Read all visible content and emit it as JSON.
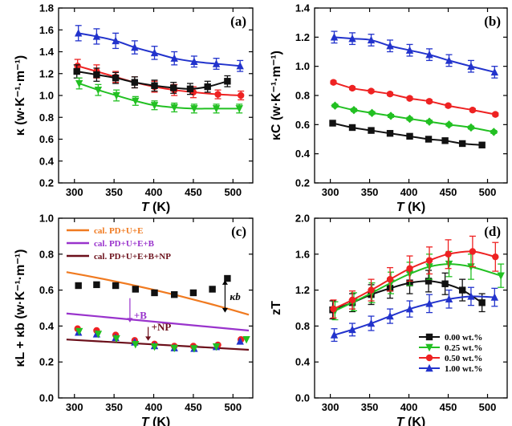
{
  "figure": "four-panel thermal conductivity and zT figure",
  "colors": {
    "black": "#111111",
    "green": "#22c022",
    "red": "#ee2222",
    "blue": "#2233cc",
    "orange": "#f07a20",
    "purple": "#9933cc",
    "maroon": "#6b0f1a"
  },
  "chart_data": [
    {
      "panel": "(a)",
      "type": "line",
      "xlabel": "T (K)",
      "ylabel": "κ (w·K⁻¹·m⁻¹)",
      "xlim": [
        280,
        525
      ],
      "ylim": [
        0.2,
        1.8
      ],
      "xticks": [
        300,
        350,
        400,
        450,
        500
      ],
      "yticks": [
        0.2,
        0.4,
        0.6,
        0.8,
        1.0,
        1.2,
        1.4,
        1.6,
        1.8
      ],
      "series": [
        {
          "name": "1.00 wt.%",
          "color": "blue",
          "marker": "triangle",
          "x": [
            305,
            328,
            352,
            376,
            401,
            426,
            451,
            479,
            509
          ],
          "y": [
            1.57,
            1.54,
            1.5,
            1.44,
            1.39,
            1.34,
            1.31,
            1.29,
            1.27
          ],
          "err": [
            0.07,
            0.07,
            0.07,
            0.06,
            0.06,
            0.06,
            0.05,
            0.05,
            0.05
          ]
        },
        {
          "name": "0.50 wt.%",
          "color": "red",
          "marker": "circle",
          "x": [
            304,
            328,
            352,
            376,
            401,
            426,
            450,
            481,
            510
          ],
          "y": [
            1.27,
            1.22,
            1.17,
            1.12,
            1.08,
            1.05,
            1.03,
            1.01,
            1.0
          ],
          "err": [
            0.06,
            0.06,
            0.05,
            0.05,
            0.05,
            0.05,
            0.05,
            0.04,
            0.04
          ]
        },
        {
          "name": "0.00 wt.%",
          "color": "black",
          "marker": "square",
          "x": [
            303,
            328,
            352,
            376,
            401,
            425,
            446,
            468,
            493
          ],
          "y": [
            1.22,
            1.19,
            1.16,
            1.12,
            1.09,
            1.07,
            1.06,
            1.08,
            1.13
          ],
          "err": [
            0.06,
            0.06,
            0.05,
            0.05,
            0.05,
            0.05,
            0.05,
            0.05,
            0.05
          ]
        },
        {
          "name": "0.25 wt.%",
          "color": "green",
          "marker": "triangle-down",
          "x": [
            306,
            330,
            353,
            377,
            401,
            426,
            451,
            479,
            508
          ],
          "y": [
            1.11,
            1.05,
            1.0,
            0.95,
            0.91,
            0.89,
            0.88,
            0.88,
            0.88
          ],
          "err": [
            0.05,
            0.05,
            0.05,
            0.04,
            0.04,
            0.04,
            0.04,
            0.04,
            0.04
          ]
        }
      ]
    },
    {
      "panel": "(b)",
      "type": "line",
      "xlabel": "T (K)",
      "ylabel": "κC (w·K⁻¹·m⁻¹)",
      "xlim": [
        280,
        525
      ],
      "ylim": [
        0.2,
        1.4
      ],
      "xticks": [
        300,
        350,
        400,
        450,
        500
      ],
      "yticks": [
        0.2,
        0.4,
        0.6,
        0.8,
        1.0,
        1.2,
        1.4
      ],
      "series": [
        {
          "name": "1.00 wt.%",
          "color": "blue",
          "marker": "triangle",
          "x": [
            305,
            328,
            352,
            376,
            401,
            426,
            451,
            479,
            509
          ],
          "y": [
            1.2,
            1.19,
            1.18,
            1.14,
            1.11,
            1.08,
            1.04,
            1.0,
            0.96
          ],
          "err": [
            0.04,
            0.04,
            0.04,
            0.04,
            0.04,
            0.04,
            0.04,
            0.04,
            0.04
          ]
        },
        {
          "name": "0.50 wt.%",
          "color": "red",
          "marker": "circle",
          "x": [
            304,
            328,
            352,
            376,
            401,
            426,
            450,
            481,
            510
          ],
          "y": [
            0.89,
            0.85,
            0.83,
            0.81,
            0.78,
            0.76,
            0.73,
            0.7,
            0.67
          ],
          "err": [
            0.01,
            0.01,
            0.01,
            0.01,
            0.01,
            0.01,
            0.01,
            0.01,
            0.01
          ]
        },
        {
          "name": "0.25 wt.%",
          "color": "green",
          "marker": "diamond",
          "x": [
            306,
            330,
            353,
            377,
            401,
            426,
            451,
            479,
            508
          ],
          "y": [
            0.73,
            0.7,
            0.68,
            0.66,
            0.64,
            0.62,
            0.6,
            0.58,
            0.55
          ],
          "err": [
            0.01,
            0.01,
            0.01,
            0.01,
            0.01,
            0.01,
            0.01,
            0.01,
            0.01
          ]
        },
        {
          "name": "0.00 wt.%",
          "color": "black",
          "marker": "square",
          "x": [
            303,
            328,
            352,
            376,
            401,
            425,
            446,
            468,
            493
          ],
          "y": [
            0.61,
            0.58,
            0.56,
            0.54,
            0.52,
            0.5,
            0.49,
            0.47,
            0.46
          ],
          "err": [
            0.005,
            0.005,
            0.005,
            0.005,
            0.005,
            0.005,
            0.005,
            0.005,
            0.005
          ]
        }
      ]
    },
    {
      "panel": "(c)",
      "type": "line",
      "xlabel": "T (K)",
      "ylabel": "κL + κb (w·K⁻¹·m⁻¹)",
      "xlim": [
        280,
        525
      ],
      "ylim": [
        0.0,
        1.0
      ],
      "xticks": [
        300,
        350,
        400,
        450,
        500
      ],
      "yticks": [
        0.0,
        0.2,
        0.4,
        0.6,
        0.8,
        1.0
      ],
      "legend": [
        "cal. PD+U+E",
        "cal. PD+U+E+B",
        "cal. PD+U+E+B+NP"
      ],
      "annotations": [
        "+B",
        "+NP",
        "κb"
      ],
      "lines": [
        {
          "name": "cal. PD+U+E",
          "color": "orange",
          "x": [
            290,
            520
          ],
          "y": [
            0.7,
            0.463
          ],
          "curve": 0.03
        },
        {
          "name": "cal. PD+U+E+B",
          "color": "purple",
          "x": [
            290,
            520
          ],
          "y": [
            0.47,
            0.375
          ],
          "curve": 0.0
        },
        {
          "name": "cal. PD+U+E+B+NP",
          "color": "maroon",
          "x": [
            290,
            520
          ],
          "y": [
            0.325,
            0.268
          ],
          "curve": 0.0
        }
      ],
      "series": [
        {
          "name": "0.00 wt.%",
          "color": "black",
          "marker": "square",
          "x": [
            305,
            328,
            352,
            377,
            401,
            426,
            450,
            474,
            493
          ],
          "y": [
            0.625,
            0.63,
            0.625,
            0.605,
            0.585,
            0.575,
            0.585,
            0.605,
            0.665
          ]
        },
        {
          "name": "0.50 wt.%",
          "color": "red",
          "marker": "circle",
          "x": [
            304,
            328,
            352,
            376,
            401,
            426,
            450,
            481,
            510
          ],
          "y": [
            0.385,
            0.375,
            0.35,
            0.32,
            0.3,
            0.288,
            0.288,
            0.295,
            0.325
          ]
        },
        {
          "name": "1.00 wt.%",
          "color": "blue",
          "marker": "triangle",
          "x": [
            305,
            328,
            352,
            376,
            401,
            426,
            451,
            479,
            509
          ],
          "y": [
            0.365,
            0.355,
            0.335,
            0.31,
            0.29,
            0.278,
            0.275,
            0.285,
            0.315
          ]
        },
        {
          "name": "0.25 wt.%",
          "color": "green",
          "marker": "triangle-down",
          "x": [
            306,
            330,
            353,
            377,
            401,
            426,
            451,
            479,
            517
          ],
          "y": [
            0.37,
            0.355,
            0.33,
            0.298,
            0.285,
            0.277,
            0.275,
            0.285,
            0.325
          ]
        }
      ]
    },
    {
      "panel": "(d)",
      "type": "line",
      "xlabel": "T (K)",
      "ylabel": "zT",
      "xlim": [
        280,
        525
      ],
      "ylim": [
        0.0,
        2.0
      ],
      "xticks": [
        300,
        350,
        400,
        450,
        500
      ],
      "yticks": [
        0.0,
        0.4,
        0.8,
        1.2,
        1.6,
        2.0
      ],
      "legend": [
        "0.00 wt.%",
        "0.25 wt.%",
        "0.50 wt.%",
        "1.00 wt.%"
      ],
      "series": [
        {
          "name": "0.00 wt.%",
          "color": "black",
          "marker": "square",
          "x": [
            303,
            328,
            352,
            376,
            401,
            425,
            446,
            468,
            493
          ],
          "y": [
            0.98,
            1.06,
            1.15,
            1.22,
            1.28,
            1.3,
            1.27,
            1.2,
            1.06
          ],
          "err": [
            0.1,
            0.1,
            0.11,
            0.11,
            0.12,
            0.12,
            0.12,
            0.12,
            0.1
          ]
        },
        {
          "name": "0.25 wt.%",
          "color": "green",
          "marker": "triangle-down",
          "x": [
            306,
            330,
            353,
            377,
            401,
            426,
            451,
            479,
            517
          ],
          "y": [
            0.97,
            1.07,
            1.17,
            1.28,
            1.38,
            1.46,
            1.49,
            1.46,
            1.36
          ],
          "err": [
            0.1,
            0.1,
            0.11,
            0.12,
            0.13,
            0.14,
            0.14,
            0.14,
            0.13
          ]
        },
        {
          "name": "0.50 wt.%",
          "color": "red",
          "marker": "circle",
          "x": [
            304,
            328,
            352,
            376,
            401,
            426,
            450,
            481,
            510
          ],
          "y": [
            0.99,
            1.09,
            1.2,
            1.32,
            1.44,
            1.53,
            1.6,
            1.63,
            1.57
          ],
          "err": [
            0.1,
            0.1,
            0.12,
            0.13,
            0.14,
            0.15,
            0.16,
            0.17,
            0.16
          ]
        },
        {
          "name": "1.00 wt.%",
          "color": "blue",
          "marker": "triangle",
          "x": [
            305,
            328,
            352,
            376,
            401,
            426,
            451,
            479,
            509
          ],
          "y": [
            0.7,
            0.76,
            0.83,
            0.91,
            0.99,
            1.05,
            1.1,
            1.13,
            1.12
          ],
          "err": [
            0.07,
            0.07,
            0.08,
            0.08,
            0.09,
            0.1,
            0.1,
            0.1,
            0.1
          ]
        }
      ]
    }
  ]
}
